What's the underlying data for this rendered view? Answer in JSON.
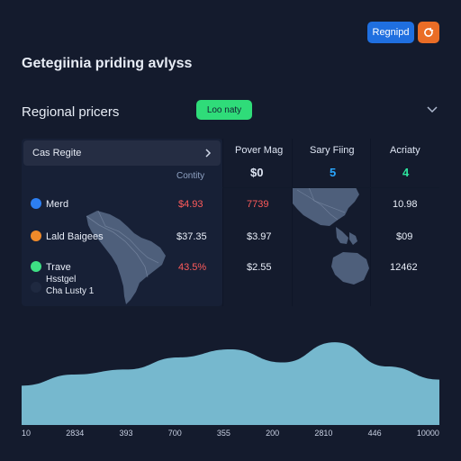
{
  "header": {
    "title": "Getegiinia priding avlyss",
    "primary_button": "Regnipd",
    "orange_icon": "refresh-icon"
  },
  "section": {
    "title": "Regional pricers",
    "status_pill": "Loo naty"
  },
  "left_panel": {
    "dropdown_label": "Cas Regite",
    "country_label": "Contity",
    "rows": [
      {
        "label": "Merd",
        "dot_color": "#2d7ff2",
        "value": "$4.93",
        "value_color": "#ff5b5b"
      },
      {
        "label": "Lald Baigees",
        "dot_color": "#f08a2a",
        "value": "$37.35",
        "value_color": "#e9eef8"
      },
      {
        "label": "Trave",
        "dot_color": "#3edf84",
        "value": "43.5%",
        "value_color": "#ff5b5b"
      }
    ],
    "note_line1": "Hsstgel",
    "note_line2": "Cha Lusty 1"
  },
  "columns": [
    {
      "header": "Pover Mag",
      "badge": "$0",
      "badge_color": "#2aa7ff",
      "values": [
        "7739",
        "$3.97",
        "$2.55"
      ]
    },
    {
      "header": "Sary Fiing",
      "badge": "5",
      "badge_color": "#2aa7ff",
      "values": []
    },
    {
      "header": "Acriaty",
      "badge": "4",
      "badge_color": "#2de39d",
      "values": [
        "10.98",
        "$09",
        "12462"
      ]
    }
  ],
  "chart_data": {
    "type": "area",
    "x": [
      "10",
      "2834",
      "393",
      "700",
      "355",
      "200",
      "2810",
      "446",
      "10000"
    ],
    "series": [
      {
        "values": [
          39,
          50,
          55,
          67,
          75,
          62,
          82,
          58,
          45
        ]
      }
    ],
    "color": "#76b8ce",
    "grid": false
  }
}
